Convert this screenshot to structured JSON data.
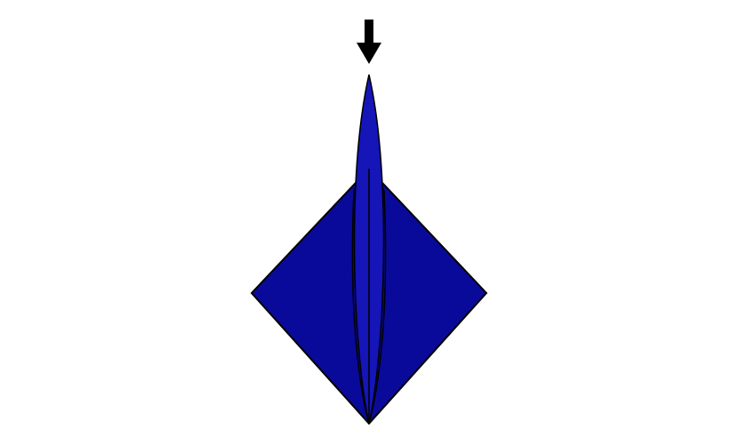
{
  "diagram": {
    "kind": "origami-step",
    "instruction_symbol": "push-down-arrow",
    "colors": {
      "paper": "#0a0a9a",
      "paper_flap": "#1515b8",
      "outline": "#000000",
      "arrow": "#000000",
      "background": "#ffffff"
    }
  }
}
